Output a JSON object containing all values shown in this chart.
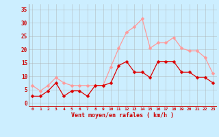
{
  "x": [
    0,
    1,
    2,
    3,
    4,
    5,
    6,
    7,
    8,
    9,
    10,
    11,
    12,
    13,
    14,
    15,
    16,
    17,
    18,
    19,
    20,
    21,
    22,
    23
  ],
  "vent_moyen": [
    2.5,
    2.5,
    4.5,
    7.5,
    2.5,
    4.5,
    4.5,
    2.5,
    6.5,
    6.5,
    7.5,
    14,
    15.5,
    11.5,
    11.5,
    9.5,
    15.5,
    15.5,
    15.5,
    11.5,
    11.5,
    9.5,
    9.5,
    7.5
  ],
  "rafales": [
    6.5,
    4.5,
    6.5,
    9.5,
    7.5,
    6.5,
    6.5,
    6.5,
    6.5,
    6.5,
    13.5,
    20.5,
    26.5,
    28.5,
    31.5,
    20.5,
    22.5,
    22.5,
    24.5,
    20.5,
    19.5,
    19.5,
    17,
    11
  ],
  "color_moyen": "#dd0000",
  "color_rafales": "#ff9999",
  "bg_color": "#cceeff",
  "grid_color": "#aaaaaa",
  "xlabel": "Vent moyen/en rafales ( km/h )",
  "ylabel_ticks": [
    0,
    5,
    10,
    15,
    20,
    25,
    30,
    35
  ],
  "xlim": [
    -0.5,
    23.5
  ],
  "ylim": [
    -1.5,
    37
  ]
}
